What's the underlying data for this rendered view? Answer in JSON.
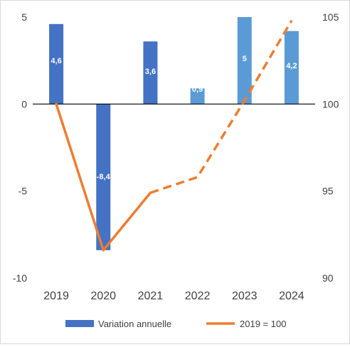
{
  "chart_data": {
    "type": "bar",
    "categories": [
      "2019",
      "2020",
      "2021",
      "2022",
      "2023",
      "2024"
    ],
    "series": [
      {
        "name": "Variation annuelle",
        "type": "bar",
        "axis": "left",
        "values": [
          4.6,
          -8.4,
          3.6,
          0.9,
          5,
          4.2
        ],
        "data_labels": [
          "4,6",
          "-8,4",
          "3,6",
          "0,9",
          "5",
          "4,2"
        ],
        "colors": [
          "#4472c4",
          "#4472c4",
          "#4472c4",
          "#5b9bd5",
          "#5b9bd5",
          "#5b9bd5"
        ]
      },
      {
        "name": "2019 = 100",
        "type": "line",
        "axis": "right",
        "values": [
          100,
          91.6,
          94.9,
          95.8,
          100.2,
          104.8
        ],
        "color": "#ed7d31",
        "solid_until_index": 2,
        "dashed_from_index": 2
      }
    ],
    "left_axis": {
      "ylim": [
        -10,
        5
      ],
      "ticks": [
        5,
        0,
        -5,
        -10
      ],
      "tick_labels": [
        "5",
        "0",
        "-5",
        "-10"
      ]
    },
    "right_axis": {
      "ylim": [
        90,
        105
      ],
      "ticks": [
        105,
        100,
        95,
        90
      ],
      "tick_labels": [
        "105",
        "100",
        "95",
        "90"
      ]
    },
    "title": "",
    "xlabel": "",
    "ylabel": "",
    "grid": false,
    "legend": "bottom"
  }
}
